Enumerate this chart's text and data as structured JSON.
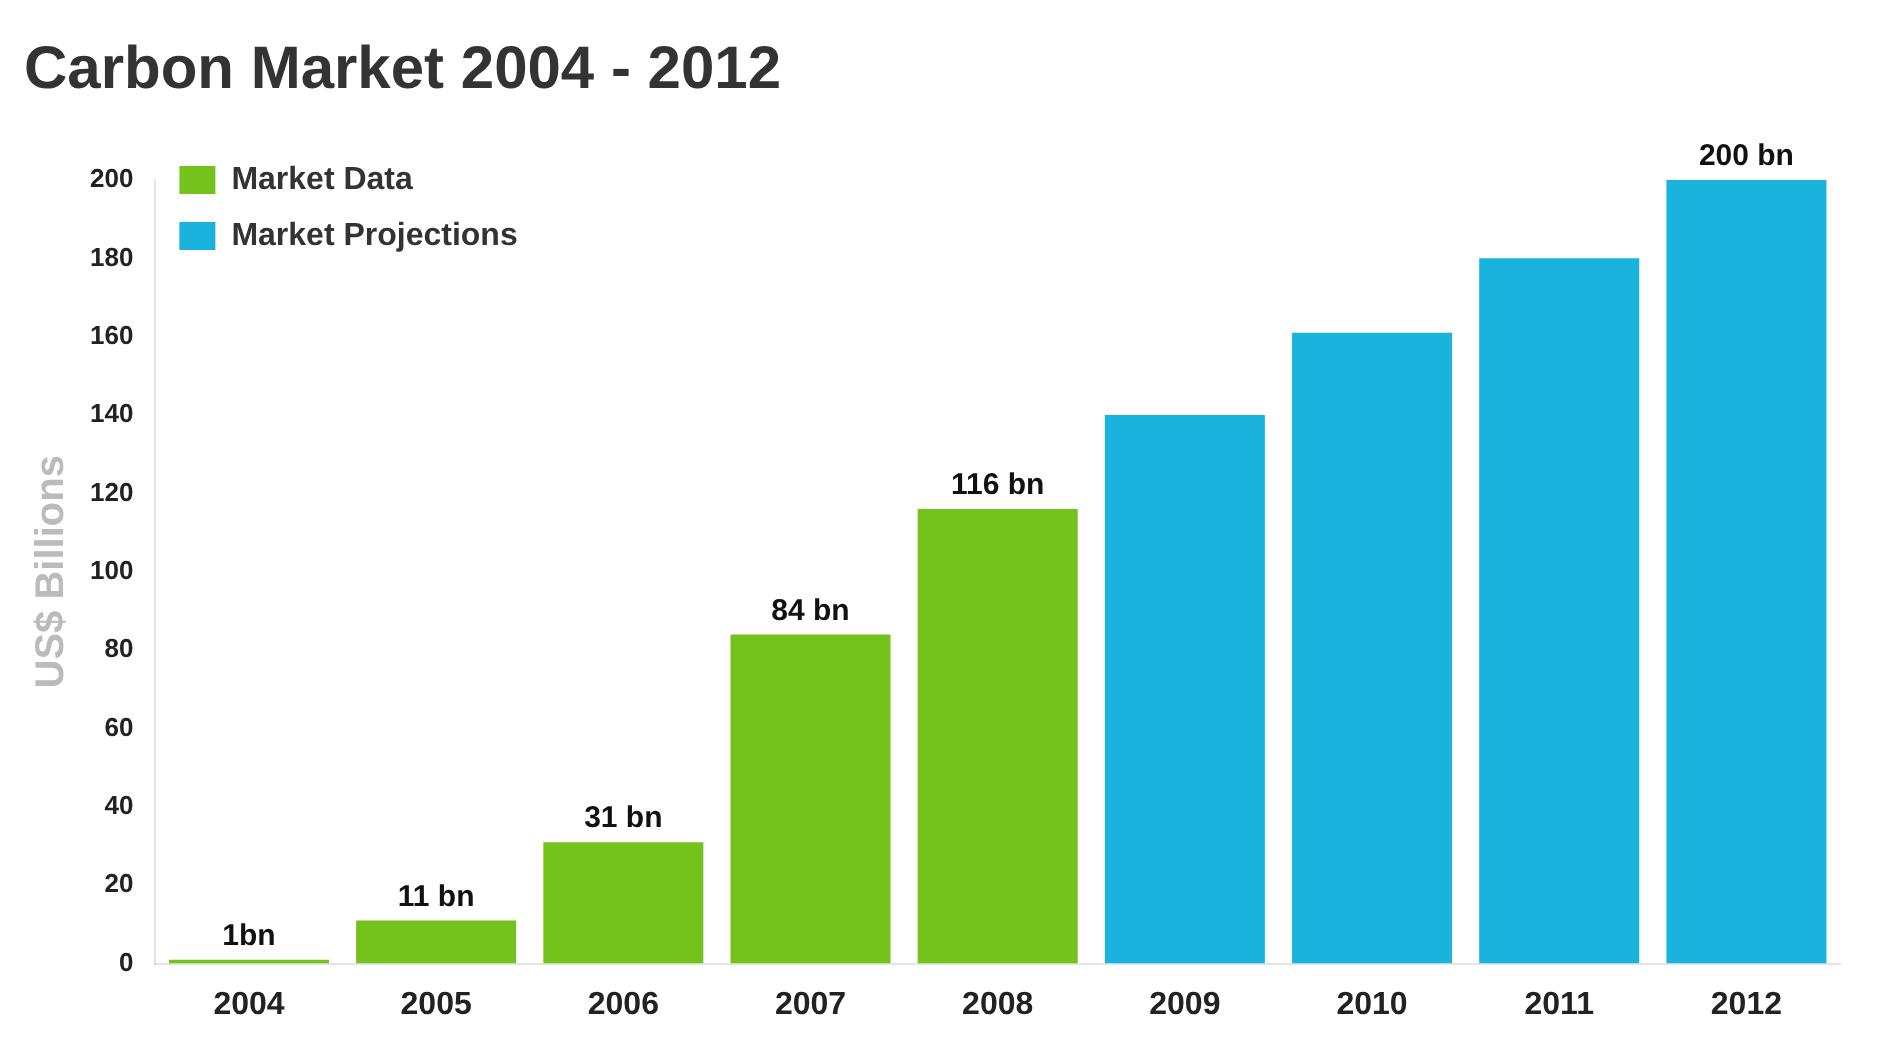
{
  "chart_data": {
    "type": "bar",
    "title": "Carbon Market 2004 - 2012",
    "ylabel": "US$ Billions",
    "categories": [
      "2004",
      "2005",
      "2006",
      "2007",
      "2008",
      "2009",
      "2010",
      "2011",
      "2012"
    ],
    "series": [
      {
        "name": "Market Data",
        "color": "#74c21c",
        "values": [
          1,
          11,
          31,
          84,
          116,
          null,
          null,
          null,
          null
        ],
        "value_labels": [
          "1bn",
          "11 bn",
          "31 bn",
          "84 bn",
          "116 bn",
          null,
          null,
          null,
          null
        ]
      },
      {
        "name": "Market Projections",
        "color": "#19b3de",
        "values": [
          null,
          null,
          null,
          null,
          null,
          140,
          161,
          180,
          200
        ],
        "value_labels": [
          null,
          null,
          null,
          null,
          null,
          null,
          null,
          null,
          "200 bn"
        ]
      }
    ],
    "ylim": [
      0,
      200
    ],
    "yticks": [
      0,
      20,
      40,
      60,
      80,
      100,
      120,
      140,
      160,
      180,
      200
    ],
    "grid": false,
    "legend": "top left"
  }
}
